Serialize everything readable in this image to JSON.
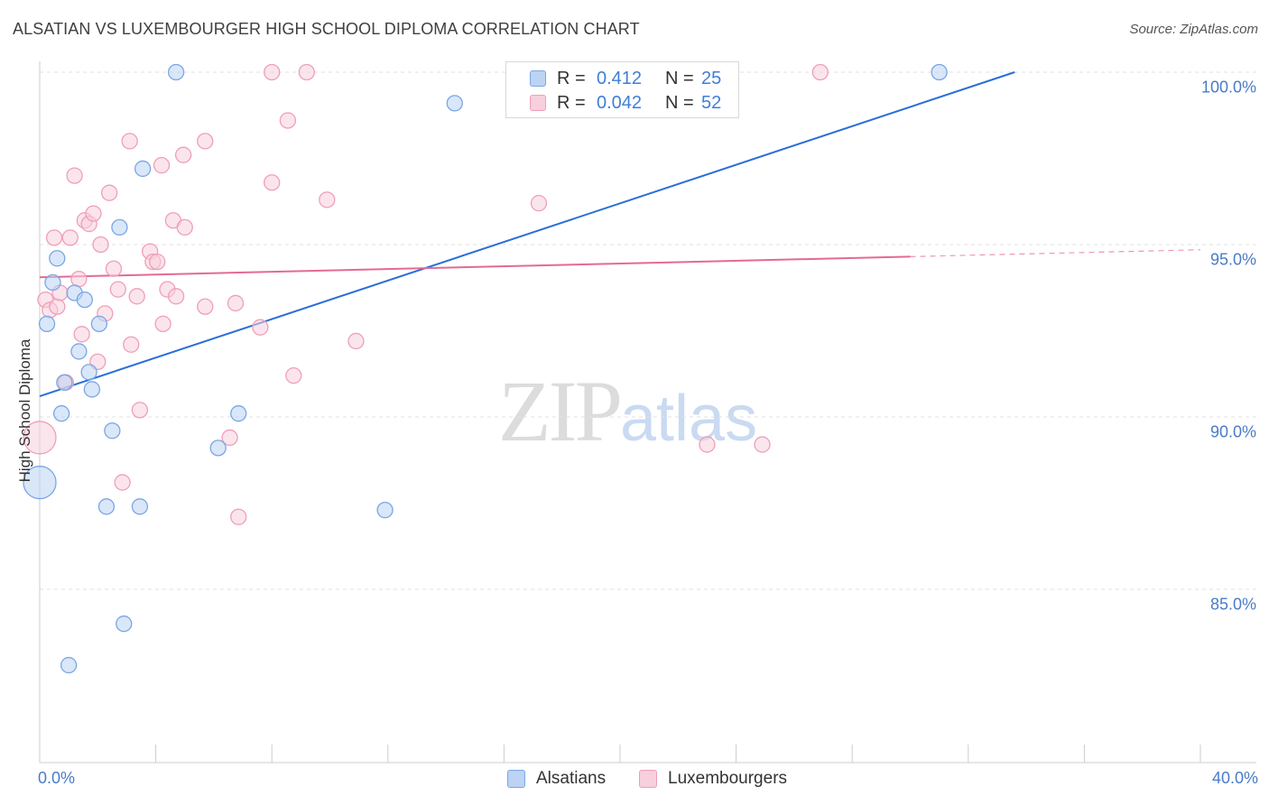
{
  "chart_data": {
    "type": "scatter",
    "title": "ALSATIAN VS LUXEMBOURGER HIGH SCHOOL DIPLOMA CORRELATION CHART",
    "source": "Source: ZipAtlas.com",
    "xlabel": "",
    "ylabel": "High School Diploma",
    "xlim": [
      0,
      40
    ],
    "ylim": [
      80.5,
      101
    ],
    "x_tick_labels": {
      "min": "0.0%",
      "max": "40.0%"
    },
    "y_ticks": [
      {
        "value": 100,
        "label": "100.0%"
      },
      {
        "value": 95,
        "label": "95.0%"
      },
      {
        "value": 90,
        "label": "90.0%"
      },
      {
        "value": 85,
        "label": "85.0%"
      }
    ],
    "grid": true,
    "legend_position": "top-center",
    "watermark": {
      "zip": "ZIP",
      "atlas": "atlas"
    },
    "series": [
      {
        "name": "Alsatians",
        "color": "#7aa6e6",
        "fill": "#bcd3f3",
        "line_color": "#2a6fd6",
        "r": "0.412",
        "n": "25",
        "trend": {
          "x0": 0,
          "y0": 90.6,
          "x1": 33.6,
          "y1": 100.0
        },
        "points": [
          {
            "x": 0,
            "y": 88.1,
            "big": true
          },
          {
            "x": 0.25,
            "y": 92.7
          },
          {
            "x": 0.45,
            "y": 93.9
          },
          {
            "x": 0.6,
            "y": 94.6
          },
          {
            "x": 0.75,
            "y": 90.1
          },
          {
            "x": 0.85,
            "y": 91.0
          },
          {
            "x": 1.0,
            "y": 82.8
          },
          {
            "x": 1.2,
            "y": 93.6
          },
          {
            "x": 1.35,
            "y": 91.9
          },
          {
            "x": 1.55,
            "y": 93.4
          },
          {
            "x": 1.7,
            "y": 91.3
          },
          {
            "x": 1.8,
            "y": 90.8
          },
          {
            "x": 2.05,
            "y": 92.7
          },
          {
            "x": 2.3,
            "y": 87.4
          },
          {
            "x": 2.5,
            "y": 89.6
          },
          {
            "x": 2.75,
            "y": 95.5
          },
          {
            "x": 2.9,
            "y": 84.0
          },
          {
            "x": 3.45,
            "y": 87.4
          },
          {
            "x": 3.55,
            "y": 97.2
          },
          {
            "x": 4.7,
            "y": 100.0
          },
          {
            "x": 6.15,
            "y": 89.1
          },
          {
            "x": 6.85,
            "y": 90.1
          },
          {
            "x": 11.9,
            "y": 87.3
          },
          {
            "x": 14.3,
            "y": 99.1
          },
          {
            "x": 31.0,
            "y": 100.0
          }
        ]
      },
      {
        "name": "Luxembourgers",
        "color": "#ef9fb8",
        "fill": "#f8cfdc",
        "line_color": "#e46a93",
        "r": "0.042",
        "n": "52",
        "trend": {
          "x0": 0,
          "y0": 94.05,
          "x1": 30,
          "y1": 94.65,
          "dash_to_x": 40,
          "dash_to_y": 94.85
        },
        "points": [
          {
            "x": 0,
            "y": 89.4,
            "big": true
          },
          {
            "x": 0.2,
            "y": 93.4
          },
          {
            "x": 0.35,
            "y": 93.1
          },
          {
            "x": 0.5,
            "y": 95.2
          },
          {
            "x": 0.6,
            "y": 93.2
          },
          {
            "x": 0.7,
            "y": 93.6
          },
          {
            "x": 0.9,
            "y": 91.0
          },
          {
            "x": 1.05,
            "y": 95.2
          },
          {
            "x": 1.2,
            "y": 97.0
          },
          {
            "x": 1.35,
            "y": 94.0
          },
          {
            "x": 1.45,
            "y": 92.4
          },
          {
            "x": 1.55,
            "y": 95.7
          },
          {
            "x": 1.7,
            "y": 95.6
          },
          {
            "x": 1.85,
            "y": 95.9
          },
          {
            "x": 2.0,
            "y": 91.6
          },
          {
            "x": 2.1,
            "y": 95.0
          },
          {
            "x": 2.25,
            "y": 93.0
          },
          {
            "x": 2.4,
            "y": 96.5
          },
          {
            "x": 2.55,
            "y": 94.3
          },
          {
            "x": 2.7,
            "y": 93.7
          },
          {
            "x": 2.85,
            "y": 88.1
          },
          {
            "x": 3.1,
            "y": 98.0
          },
          {
            "x": 3.15,
            "y": 92.1
          },
          {
            "x": 3.35,
            "y": 93.5
          },
          {
            "x": 3.45,
            "y": 90.2
          },
          {
            "x": 3.8,
            "y": 94.8
          },
          {
            "x": 3.9,
            "y": 94.5
          },
          {
            "x": 4.05,
            "y": 94.5
          },
          {
            "x": 4.2,
            "y": 97.3
          },
          {
            "x": 4.25,
            "y": 92.7
          },
          {
            "x": 4.4,
            "y": 93.7
          },
          {
            "x": 4.6,
            "y": 95.7
          },
          {
            "x": 4.7,
            "y": 93.5
          },
          {
            "x": 5.0,
            "y": 95.5
          },
          {
            "x": 4.95,
            "y": 97.6
          },
          {
            "x": 5.7,
            "y": 98.0
          },
          {
            "x": 5.7,
            "y": 93.2
          },
          {
            "x": 6.55,
            "y": 89.4
          },
          {
            "x": 6.75,
            "y": 93.3
          },
          {
            "x": 6.85,
            "y": 87.1
          },
          {
            "x": 7.6,
            "y": 92.6
          },
          {
            "x": 8.0,
            "y": 100.0
          },
          {
            "x": 8.0,
            "y": 96.8
          },
          {
            "x": 8.55,
            "y": 98.6
          },
          {
            "x": 8.75,
            "y": 91.2
          },
          {
            "x": 9.2,
            "y": 100.0
          },
          {
            "x": 9.9,
            "y": 96.3
          },
          {
            "x": 10.9,
            "y": 92.2
          },
          {
            "x": 17.2,
            "y": 96.2
          },
          {
            "x": 23.0,
            "y": 89.2
          },
          {
            "x": 24.9,
            "y": 89.2
          },
          {
            "x": 26.9,
            "y": 100.0
          }
        ]
      }
    ]
  }
}
